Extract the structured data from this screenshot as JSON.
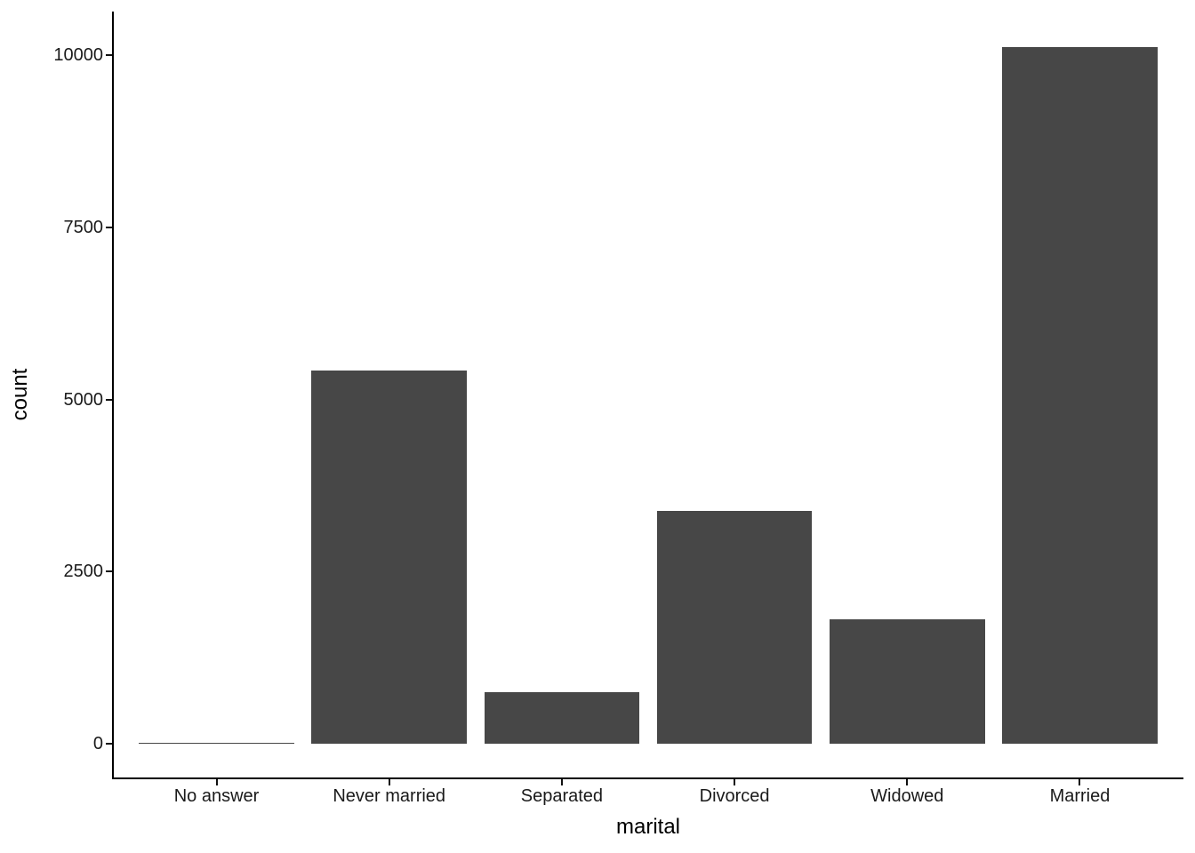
{
  "chart_data": {
    "type": "bar",
    "title": "",
    "xlabel": "marital",
    "ylabel": "count",
    "categories": [
      "No answer",
      "Never married",
      "Separated",
      "Divorced",
      "Widowed",
      "Married"
    ],
    "values": [
      17,
      5416,
      743,
      3383,
      1807,
      10117
    ],
    "y_ticks": [
      0,
      2500,
      5000,
      7500,
      10000
    ],
    "ylim": [
      0,
      10117
    ],
    "grid": "off",
    "legend": "none",
    "bar_color": "#474747",
    "axis_color": "#000000",
    "text_color": "#1a1a1a",
    "background_color": "#ffffff",
    "style_note": "ggplot2 classic theme, single series count bar chart"
  }
}
